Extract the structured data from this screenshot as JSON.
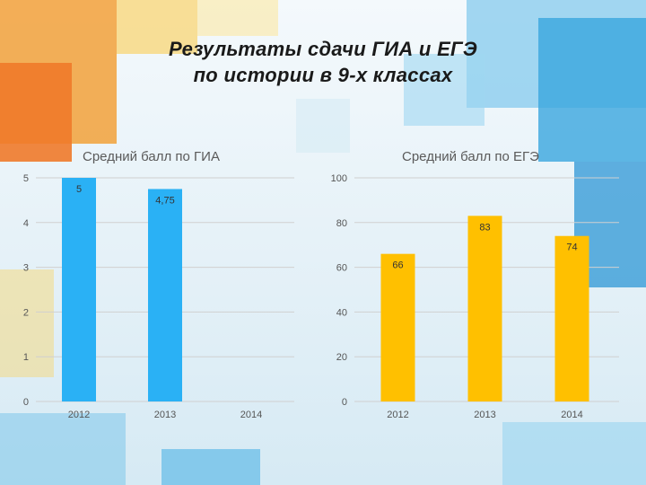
{
  "slide": {
    "title_line1": "Результаты сдачи ГИА и ЕГЭ",
    "title_line2": "по истории в 9-х классах"
  },
  "colors": {
    "gia_bar": "#2ab1f5",
    "ege_bar": "#ffc000",
    "axis_text": "#555555",
    "grid": "#d0d0d0"
  },
  "chart_data": [
    {
      "type": "bar",
      "title": "Средний балл по ГИА",
      "categories": [
        "2012",
        "2013",
        "2014"
      ],
      "values": [
        5,
        4.75,
        null
      ],
      "data_labels": [
        "5",
        "4,75",
        ""
      ],
      "yticks": [
        "0",
        "1",
        "2",
        "3",
        "4",
        "5"
      ],
      "ylim": [
        0,
        5
      ],
      "xlabel": "",
      "ylabel": "",
      "grid": true,
      "color": "#2ab1f5"
    },
    {
      "type": "bar",
      "title": "Средний балл по ЕГЭ",
      "categories": [
        "2012",
        "2013",
        "2014"
      ],
      "values": [
        66,
        83,
        74
      ],
      "data_labels": [
        "66",
        "83",
        "74"
      ],
      "yticks": [
        "0",
        "20",
        "40",
        "60",
        "80",
        "100"
      ],
      "ylim": [
        0,
        100
      ],
      "xlabel": "",
      "ylabel": "",
      "grid": true,
      "color": "#ffc000"
    }
  ]
}
